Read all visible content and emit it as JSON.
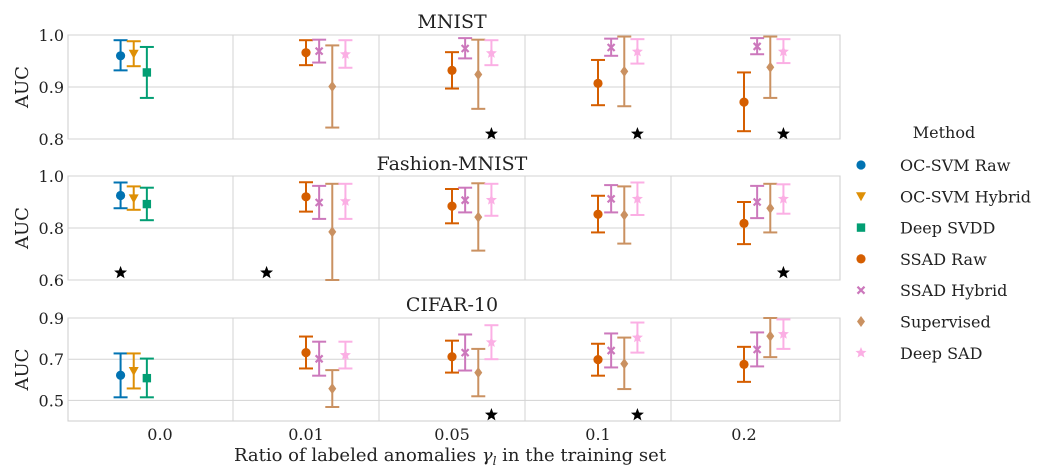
{
  "chart_data": {
    "type": "errorbar",
    "xlabel_text": "Ratio of labeled anomalies ",
    "xlabel_symbol": "γ",
    "xlabel_sub": "l",
    "xlabel_tail": " in the training set",
    "categories": [
      "0.0",
      "0.01",
      "0.05",
      "0.1",
      "0.2"
    ],
    "legend": {
      "title": "Method",
      "entries": [
        {
          "name": "OC-SVM Raw",
          "color": "#0173b2",
          "marker": "circle"
        },
        {
          "name": "OC-SVM Hybrid",
          "color": "#de8f05",
          "marker": "triangle-down"
        },
        {
          "name": "Deep SVDD",
          "color": "#029e73",
          "marker": "square"
        },
        {
          "name": "SSAD Raw",
          "color": "#d55e00",
          "marker": "circle"
        },
        {
          "name": "SSAD Hybrid",
          "color": "#cc78bc",
          "marker": "x"
        },
        {
          "name": "Supervised",
          "color": "#ca9161",
          "marker": "diamond"
        },
        {
          "name": "Deep SAD",
          "color": "#fbafe4",
          "marker": "star"
        }
      ]
    },
    "panels": [
      {
        "title": "MNIST",
        "ylabel": "AUC",
        "ylim": [
          0.8,
          1.0
        ],
        "yticks": [
          "0.8",
          "0.9",
          "1.0"
        ],
        "series": [
          {
            "name": "OC-SVM Raw",
            "points": [
              {
                "cat": 0,
                "mean": 0.96,
                "low": 0.932,
                "high": 0.99
              }
            ]
          },
          {
            "name": "OC-SVM Hybrid",
            "points": [
              {
                "cat": 0,
                "mean": 0.964,
                "low": 0.94,
                "high": 0.988
              }
            ]
          },
          {
            "name": "Deep SVDD",
            "points": [
              {
                "cat": 0,
                "mean": 0.928,
                "low": 0.879,
                "high": 0.977
              }
            ]
          },
          {
            "name": "SSAD Raw",
            "points": [
              {
                "cat": 1,
                "mean": 0.966,
                "low": 0.942,
                "high": 0.99
              },
              {
                "cat": 2,
                "mean": 0.932,
                "low": 0.897,
                "high": 0.967
              },
              {
                "cat": 3,
                "mean": 0.907,
                "low": 0.865,
                "high": 0.952
              },
              {
                "cat": 4,
                "mean": 0.871,
                "low": 0.815,
                "high": 0.928
              }
            ]
          },
          {
            "name": "SSAD Hybrid",
            "points": [
              {
                "cat": 1,
                "mean": 0.969,
                "low": 0.947,
                "high": 0.991
              },
              {
                "cat": 2,
                "mean": 0.974,
                "low": 0.955,
                "high": 0.994
              },
              {
                "cat": 3,
                "mean": 0.976,
                "low": 0.96,
                "high": 0.993
              },
              {
                "cat": 4,
                "mean": 0.978,
                "low": 0.963,
                "high": 0.994
              }
            ]
          },
          {
            "name": "Supervised",
            "points": [
              {
                "cat": 1,
                "mean": 0.901,
                "low": 0.822,
                "high": 0.98
              },
              {
                "cat": 2,
                "mean": 0.924,
                "low": 0.858,
                "high": 0.991
              },
              {
                "cat": 3,
                "mean": 0.93,
                "low": 0.863,
                "high": 0.997
              },
              {
                "cat": 4,
                "mean": 0.938,
                "low": 0.879,
                "high": 0.997
              }
            ]
          },
          {
            "name": "Deep SAD",
            "points": [
              {
                "cat": 1,
                "mean": 0.963,
                "low": 0.937,
                "high": 0.99
              },
              {
                "cat": 2,
                "mean": 0.965,
                "low": 0.942,
                "high": 0.99
              },
              {
                "cat": 3,
                "mean": 0.968,
                "low": 0.945,
                "high": 0.992
              },
              {
                "cat": 4,
                "mean": 0.968,
                "low": 0.946,
                "high": 0.992
              }
            ]
          }
        ],
        "significance_stars": [
          {
            "cat": 2,
            "offset": 0.27,
            "value": 0.81
          },
          {
            "cat": 3,
            "offset": 0.27,
            "value": 0.81
          },
          {
            "cat": 4,
            "offset": 0.27,
            "value": 0.81
          }
        ]
      },
      {
        "title": "Fashion-MNIST",
        "ylabel": "AUC",
        "ylim": [
          0.6,
          1.0
        ],
        "yticks": [
          "0.6",
          "0.8",
          "1.0"
        ],
        "series": [
          {
            "name": "OC-SVM Raw",
            "points": [
              {
                "cat": 0,
                "mean": 0.925,
                "low": 0.876,
                "high": 0.975
              }
            ]
          },
          {
            "name": "OC-SVM Hybrid",
            "points": [
              {
                "cat": 0,
                "mean": 0.914,
                "low": 0.87,
                "high": 0.96
              }
            ]
          },
          {
            "name": "Deep SVDD",
            "points": [
              {
                "cat": 0,
                "mean": 0.892,
                "low": 0.83,
                "high": 0.955
              }
            ]
          },
          {
            "name": "SSAD Raw",
            "points": [
              {
                "cat": 1,
                "mean": 0.92,
                "low": 0.863,
                "high": 0.976
              },
              {
                "cat": 2,
                "mean": 0.884,
                "low": 0.818,
                "high": 0.95
              },
              {
                "cat": 3,
                "mean": 0.853,
                "low": 0.783,
                "high": 0.924
              },
              {
                "cat": 4,
                "mean": 0.818,
                "low": 0.738,
                "high": 0.9
              }
            ]
          },
          {
            "name": "SSAD Hybrid",
            "points": [
              {
                "cat": 1,
                "mean": 0.898,
                "low": 0.835,
                "high": 0.962
              },
              {
                "cat": 2,
                "mean": 0.907,
                "low": 0.86,
                "high": 0.955
              },
              {
                "cat": 3,
                "mean": 0.912,
                "low": 0.86,
                "high": 0.965
              },
              {
                "cat": 4,
                "mean": 0.9,
                "low": 0.838,
                "high": 0.962
              }
            ]
          },
          {
            "name": "Supervised",
            "points": [
              {
                "cat": 1,
                "mean": 0.785,
                "low": 0.6,
                "high": 0.97
              },
              {
                "cat": 2,
                "mean": 0.842,
                "low": 0.713,
                "high": 0.972
              },
              {
                "cat": 3,
                "mean": 0.85,
                "low": 0.74,
                "high": 0.96
              },
              {
                "cat": 4,
                "mean": 0.876,
                "low": 0.783,
                "high": 0.97
              }
            ]
          },
          {
            "name": "Deep SAD",
            "points": [
              {
                "cat": 1,
                "mean": 0.903,
                "low": 0.835,
                "high": 0.97
              },
              {
                "cat": 2,
                "mean": 0.908,
                "low": 0.847,
                "high": 0.97
              },
              {
                "cat": 3,
                "mean": 0.912,
                "low": 0.85,
                "high": 0.975
              },
              {
                "cat": 4,
                "mean": 0.912,
                "low": 0.855,
                "high": 0.968
              }
            ]
          }
        ],
        "significance_stars": [
          {
            "cat": 0,
            "offset": -0.27,
            "value": 0.628
          },
          {
            "cat": 1,
            "offset": -0.27,
            "value": 0.628
          },
          {
            "cat": 4,
            "offset": 0.27,
            "value": 0.628
          }
        ]
      },
      {
        "title": "CIFAR-10",
        "ylabel": "AUC",
        "ylim": [
          0.4,
          0.9
        ],
        "yticks": [
          "0.5",
          "0.7",
          "0.9"
        ],
        "series": [
          {
            "name": "OC-SVM Raw",
            "points": [
              {
                "cat": 0,
                "mean": 0.622,
                "low": 0.515,
                "high": 0.728
              }
            ]
          },
          {
            "name": "OC-SVM Hybrid",
            "points": [
              {
                "cat": 0,
                "mean": 0.643,
                "low": 0.558,
                "high": 0.728
              }
            ]
          },
          {
            "name": "Deep SVDD",
            "points": [
              {
                "cat": 0,
                "mean": 0.608,
                "low": 0.515,
                "high": 0.703
              }
            ]
          },
          {
            "name": "SSAD Raw",
            "points": [
              {
                "cat": 1,
                "mean": 0.732,
                "low": 0.655,
                "high": 0.81
              },
              {
                "cat": 2,
                "mean": 0.712,
                "low": 0.635,
                "high": 0.79
              },
              {
                "cat": 3,
                "mean": 0.698,
                "low": 0.62,
                "high": 0.775
              },
              {
                "cat": 4,
                "mean": 0.675,
                "low": 0.59,
                "high": 0.76
              }
            ]
          },
          {
            "name": "SSAD Hybrid",
            "points": [
              {
                "cat": 1,
                "mean": 0.702,
                "low": 0.62,
                "high": 0.785
              },
              {
                "cat": 2,
                "mean": 0.732,
                "low": 0.645,
                "high": 0.82
              },
              {
                "cat": 3,
                "mean": 0.742,
                "low": 0.66,
                "high": 0.825
              },
              {
                "cat": 4,
                "mean": 0.747,
                "low": 0.665,
                "high": 0.83
              }
            ]
          },
          {
            "name": "Supervised",
            "points": [
              {
                "cat": 1,
                "mean": 0.557,
                "low": 0.468,
                "high": 0.647
              },
              {
                "cat": 2,
                "mean": 0.635,
                "low": 0.52,
                "high": 0.75
              },
              {
                "cat": 3,
                "mean": 0.678,
                "low": 0.555,
                "high": 0.805
              },
              {
                "cat": 4,
                "mean": 0.812,
                "low": 0.71,
                "high": 0.9
              }
            ]
          },
          {
            "name": "Deep SAD",
            "points": [
              {
                "cat": 1,
                "mean": 0.72,
                "low": 0.655,
                "high": 0.785
              },
              {
                "cat": 2,
                "mean": 0.782,
                "low": 0.7,
                "high": 0.865
              },
              {
                "cat": 3,
                "mean": 0.805,
                "low": 0.732,
                "high": 0.878
              },
              {
                "cat": 4,
                "mean": 0.822,
                "low": 0.75,
                "high": 0.893
              }
            ]
          }
        ],
        "significance_stars": [
          {
            "cat": 2,
            "offset": 0.27,
            "value": 0.43
          },
          {
            "cat": 3,
            "offset": 0.27,
            "value": 0.43
          }
        ]
      }
    ]
  }
}
